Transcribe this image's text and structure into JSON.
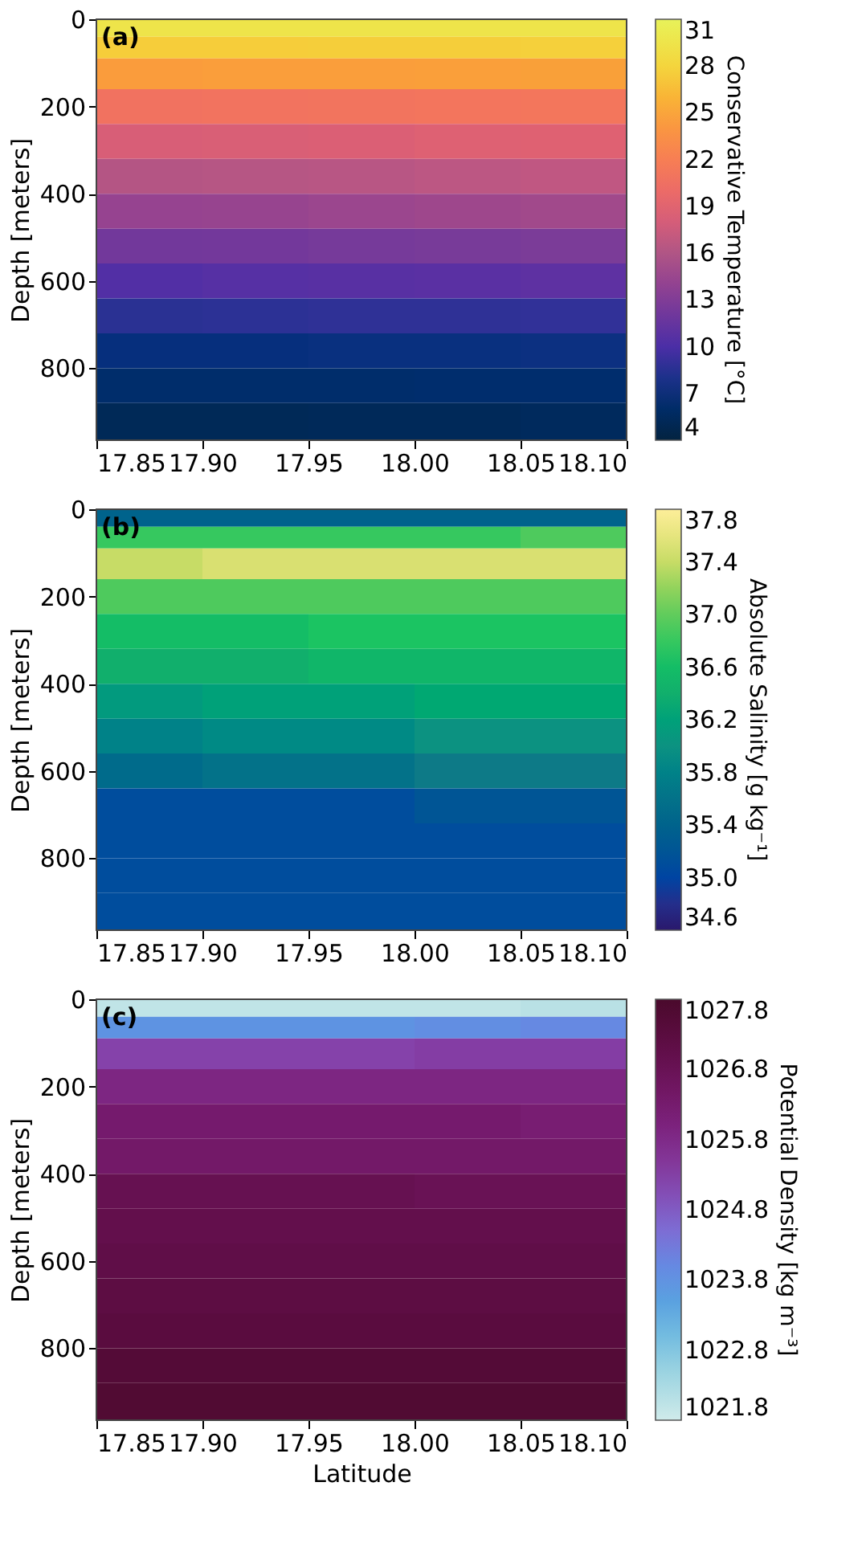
{
  "chart_data": [
    {
      "type": "heatmap",
      "annotations": [
        "(a)"
      ],
      "ylabel": "Depth [meters]",
      "clabel": "Conservative Temperature [°C]",
      "x": [
        17.875,
        17.925,
        17.975,
        18.025,
        18.075
      ],
      "y": [
        20,
        60,
        120,
        200,
        280,
        360,
        440,
        520,
        600,
        680,
        760,
        840,
        920
      ],
      "cells": [
        [
          29.5,
          29.5,
          29.5,
          29.5,
          29.5
        ],
        [
          27.5,
          27.5,
          27.6,
          27.6,
          27.7
        ],
        [
          24.5,
          24.6,
          24.6,
          24.7,
          24.8
        ],
        [
          20.8,
          20.9,
          21.0,
          21.1,
          21.2
        ],
        [
          18.2,
          18.3,
          18.4,
          18.6,
          18.7
        ],
        [
          16.2,
          16.3,
          16.4,
          16.6,
          16.8
        ],
        [
          14.2,
          14.3,
          14.5,
          14.7,
          14.9
        ],
        [
          12.2,
          12.3,
          12.5,
          12.7,
          12.9
        ],
        [
          10.3,
          10.5,
          10.6,
          10.7,
          10.9
        ],
        [
          8.6,
          8.7,
          8.8,
          8.8,
          8.9
        ],
        [
          7.2,
          7.2,
          7.3,
          7.3,
          7.4
        ],
        [
          6.2,
          6.2,
          6.2,
          6.3,
          6.3
        ],
        [
          5.2,
          5.2,
          5.3,
          5.3,
          5.5
        ]
      ],
      "clim": [
        4,
        31
      ],
      "cticks": [
        4,
        7,
        10,
        13,
        16,
        19,
        22,
        25,
        28,
        31
      ],
      "colors": [
        "#032340",
        "#012f7a",
        "#4b2ea6",
        "#7c3d98",
        "#b05585",
        "#e3646f",
        "#f77e54",
        "#f9a337",
        "#f4d53d",
        "#e8f25a"
      ],
      "xlim": [
        17.85,
        18.1
      ],
      "xticks": [
        17.85,
        {
          "value": 17.9,
          "label": "17.90"
        },
        17.95,
        {
          "value": 18.0,
          "label": "18.00"
        },
        18.05,
        {
          "value": 18.1,
          "label": "18.10"
        }
      ],
      "ylim": [
        965,
        0
      ],
      "yticks": [
        0,
        200,
        400,
        600,
        800
      ],
      "grid": false
    },
    {
      "type": "heatmap",
      "annotations": [
        "(b)"
      ],
      "ylabel": "Depth [meters]",
      "clabel": "Absolute Salinity [g kg⁻¹]",
      "x": [
        17.875,
        17.925,
        17.975,
        18.025,
        18.075
      ],
      "y": [
        20,
        60,
        120,
        200,
        280,
        360,
        440,
        520,
        600,
        680,
        760,
        840,
        920
      ],
      "cells": [
        [
          35.4,
          35.4,
          35.4,
          35.4,
          35.4
        ],
        [
          36.8,
          36.8,
          36.8,
          36.8,
          36.9
        ],
        [
          37.4,
          37.5,
          37.5,
          37.5,
          37.5
        ],
        [
          36.9,
          36.9,
          36.9,
          36.9,
          36.9
        ],
        [
          36.6,
          36.6,
          36.7,
          36.7,
          36.7
        ],
        [
          36.4,
          36.4,
          36.5,
          36.5,
          36.5
        ],
        [
          36.1,
          36.2,
          36.2,
          36.3,
          36.3
        ],
        [
          35.8,
          35.9,
          35.9,
          36.0,
          36.0
        ],
        [
          35.5,
          35.6,
          35.6,
          35.7,
          35.7
        ],
        [
          35.1,
          35.1,
          35.1,
          35.2,
          35.2
        ],
        [
          35.1,
          35.1,
          35.1,
          35.1,
          35.1
        ],
        [
          35.1,
          35.1,
          35.1,
          35.1,
          35.1
        ],
        [
          35.1,
          35.1,
          35.1,
          35.1,
          35.1
        ]
      ],
      "clim": [
        34.6,
        37.8
      ],
      "cticks": [
        34.6,
        {
          "value": 35,
          "label": "35.0"
        },
        35.4,
        35.8,
        36.2,
        36.6,
        {
          "value": 37,
          "label": "37.0"
        },
        37.4,
        37.8
      ],
      "colors": [
        "#2a186c",
        "#0e3fa3",
        "#0f5c8c",
        "#137787",
        "#129480",
        "#12ad6c",
        "#1ec660",
        "#6fce5b",
        "#d2de6a",
        "#fdee99"
      ],
      "xlim": [
        17.85,
        18.1
      ],
      "xticks": [
        17.85,
        {
          "value": 17.9,
          "label": "17.90"
        },
        17.95,
        {
          "value": 18.0,
          "label": "18.00"
        },
        18.05,
        {
          "value": 18.1,
          "label": "18.10"
        }
      ],
      "ylim": [
        965,
        0
      ],
      "yticks": [
        0,
        200,
        400,
        600,
        800
      ],
      "grid": false
    },
    {
      "type": "heatmap",
      "annotations": [
        "(c)"
      ],
      "xlabel": "Latitude",
      "ylabel": "Depth [meters]",
      "clabel": "Potential Density [kg m⁻³]",
      "x": [
        17.875,
        17.925,
        17.975,
        18.025,
        18.075
      ],
      "y": [
        20,
        60,
        120,
        200,
        280,
        360,
        440,
        520,
        600,
        680,
        760,
        840,
        920
      ],
      "cells": [
        [
          1022.0,
          1022.0,
          1022.0,
          1022.0,
          1022.1
        ],
        [
          1023.8,
          1023.8,
          1023.8,
          1023.9,
          1024.0
        ],
        [
          1025.2,
          1025.2,
          1025.2,
          1025.3,
          1025.3
        ],
        [
          1025.9,
          1025.9,
          1025.9,
          1025.9,
          1025.9
        ],
        [
          1026.3,
          1026.3,
          1026.3,
          1026.3,
          1026.2
        ],
        [
          1026.4,
          1026.4,
          1026.4,
          1026.4,
          1026.4
        ],
        [
          1026.9,
          1026.9,
          1026.9,
          1026.8,
          1026.8
        ],
        [
          1027.0,
          1027.0,
          1027.0,
          1027.0,
          1027.0
        ],
        [
          1027.1,
          1027.1,
          1027.1,
          1027.1,
          1027.1
        ],
        [
          1027.2,
          1027.2,
          1027.2,
          1027.2,
          1027.2
        ],
        [
          1027.3,
          1027.3,
          1027.3,
          1027.3,
          1027.3
        ],
        [
          1027.5,
          1027.5,
          1027.5,
          1027.5,
          1027.5
        ],
        [
          1027.6,
          1027.6,
          1027.6,
          1027.6,
          1027.6
        ]
      ],
      "clim": [
        1021.8,
        1027.8
      ],
      "cticks": [
        1021.8,
        1022.8,
        1023.8,
        1024.8,
        1025.8,
        1026.8,
        1027.8
      ],
      "colors": [
        "#d0ebeb",
        "#8fcde0",
        "#5aa0e0",
        "#7b74db",
        "#8540a8",
        "#7a1f78",
        "#65104f",
        "#4a0a2c"
      ],
      "xlim": [
        17.85,
        18.1
      ],
      "xticks": [
        17.85,
        {
          "value": 17.9,
          "label": "17.90"
        },
        17.95,
        {
          "value": 18.0,
          "label": "18.00"
        },
        18.05,
        {
          "value": 18.1,
          "label": "18.10"
        }
      ],
      "ylim": [
        965,
        0
      ],
      "yticks": [
        0,
        200,
        400,
        600,
        800
      ],
      "grid": false
    }
  ]
}
